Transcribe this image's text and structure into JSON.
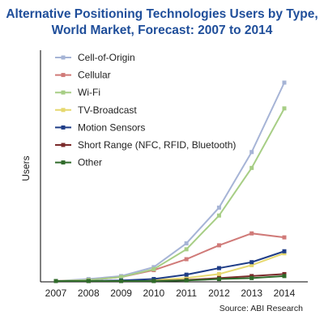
{
  "chart_data": {
    "type": "line",
    "title_lines": [
      "Alternative Positioning Technologies Users by Type,",
      "World Market, Forecast: 2007 to 2014"
    ],
    "xlabel": "",
    "ylabel": "Users",
    "source": "Source: ABI Research",
    "categories": [
      "2007",
      "2008",
      "2009",
      "2010",
      "2011",
      "2012",
      "2013",
      "2014"
    ],
    "ylim": [
      0,
      100
    ],
    "grid": false,
    "legend_position": "top-left",
    "series": [
      {
        "name": "Cell-of-Origin",
        "color": "#a6b4d6",
        "values": [
          0,
          1,
          2.5,
          7,
          19,
          37,
          65,
          100
        ]
      },
      {
        "name": "Cellular",
        "color": "#d07a78",
        "values": [
          0,
          0.5,
          2,
          5.5,
          11,
          18,
          24,
          22
        ]
      },
      {
        "name": "Wi-Fi",
        "color": "#a7ce85",
        "values": [
          0,
          0.5,
          2,
          6,
          16,
          33,
          57,
          87
        ]
      },
      {
        "name": "TV-Broadcast",
        "color": "#e6d86e",
        "values": [
          0,
          0,
          0,
          0.5,
          1.5,
          3.5,
          8,
          14
        ]
      },
      {
        "name": "Motion Sensors",
        "color": "#1f3d87",
        "values": [
          0,
          0,
          0.3,
          1,
          3.2,
          6.5,
          9.5,
          15
        ]
      },
      {
        "name": "Short Range (NFC, RFID, Bluetooth)",
        "color": "#7a2a2a",
        "values": [
          0,
          0,
          0,
          0,
          0.5,
          1.5,
          2.5,
          3.5
        ]
      },
      {
        "name": "Other",
        "color": "#2f6a2a",
        "values": [
          0,
          0,
          0,
          0,
          0.3,
          1,
          1.5,
          2.5
        ]
      }
    ]
  }
}
